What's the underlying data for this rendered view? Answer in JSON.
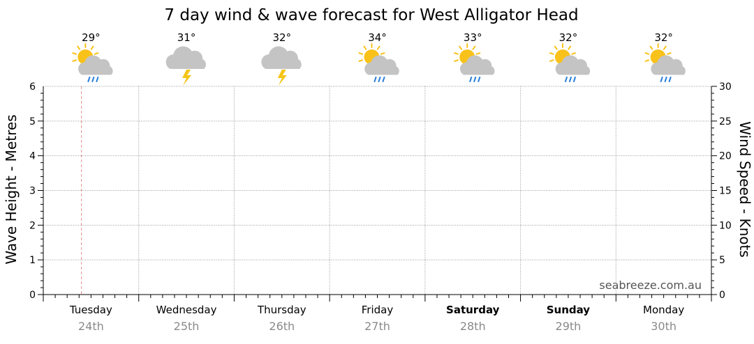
{
  "chart_data": {
    "type": "line",
    "title": "7 day wind & wave forecast for West Alligator Head",
    "y_left_label": "Wave Height - Metres",
    "y_right_label": "Wind Speed - Knots",
    "y_left_range": [
      0,
      6
    ],
    "y_right_range": [
      0,
      30
    ],
    "y_left_ticks": [
      "0",
      "1",
      "2",
      "3",
      "4",
      "5",
      "6"
    ],
    "y_right_ticks": [
      "0",
      "5",
      "10",
      "15",
      "20",
      "25",
      "30"
    ],
    "grid": true,
    "watermark": "seabreeze.com.au",
    "days": [
      {
        "day": "Tuesday",
        "date": "24th",
        "temp": "29°",
        "icon": "sun-cloud-rain-icon",
        "bold": false
      },
      {
        "day": "Wednesday",
        "date": "25th",
        "temp": "31°",
        "icon": "storm-icon",
        "bold": false
      },
      {
        "day": "Thursday",
        "date": "26th",
        "temp": "32°",
        "icon": "storm-icon",
        "bold": false
      },
      {
        "day": "Friday",
        "date": "27th",
        "temp": "34°",
        "icon": "sun-cloud-rain-icon",
        "bold": false
      },
      {
        "day": "Saturday",
        "date": "28th",
        "temp": "33°",
        "icon": "sun-cloud-rain-icon",
        "bold": true
      },
      {
        "day": "Sunday",
        "date": "29th",
        "temp": "32°",
        "icon": "sun-cloud-rain-icon",
        "bold": true
      },
      {
        "day": "Monday",
        "date": "30th",
        "temp": "32°",
        "icon": "sun-cloud-rain-icon",
        "bold": false
      }
    ],
    "current_time_marker": 0.4,
    "series": []
  },
  "colors": {
    "grid": "#9a9a9a",
    "now_line": "#e88a8a",
    "date_text": "#8a8a8a",
    "sun": "#f9c21a",
    "cloud": "#c4c4c4",
    "rain": "#2a7fd9",
    "bolt": "#f5c518"
  }
}
